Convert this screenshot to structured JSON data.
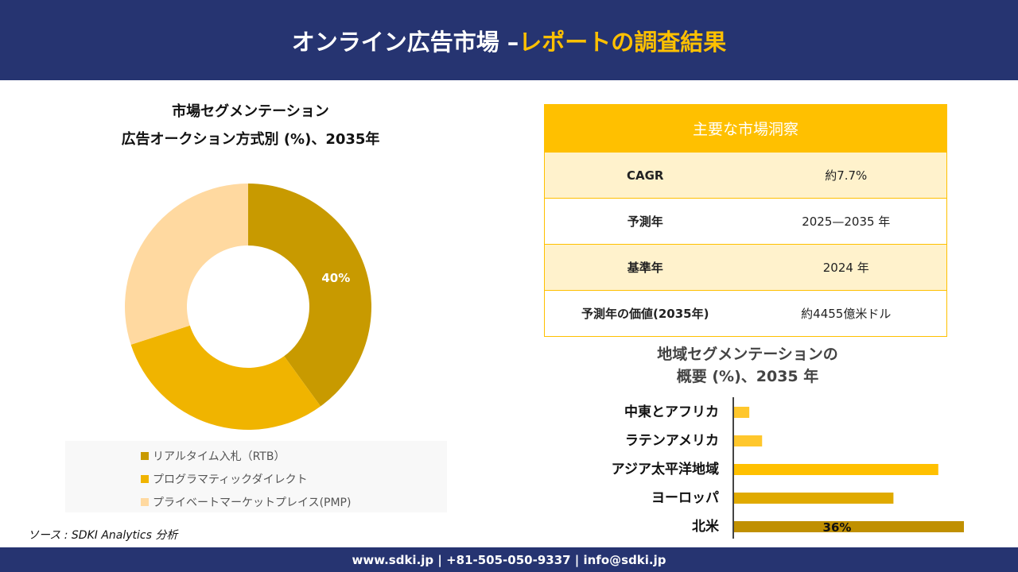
{
  "header": {
    "title_main": "オンライン広告市場 –",
    "title_highlight": "レポートの調査結果"
  },
  "colors": {
    "header_bg": "#263471",
    "accent": "#FFC000",
    "rtb": "#C89A00",
    "programmatic": "#F0B400",
    "pmp": "#FFD9A0"
  },
  "chart_data": [
    {
      "type": "pie",
      "donut": true,
      "title_line1": "市場セグメンテーション",
      "title_line2": "広告オークション方式別 (%)、2035年",
      "categories": [
        "リアルタイム入札（RTB）",
        "プログラマティックダイレクト",
        "プライベートマーケットプレイス(PMP)"
      ],
      "values": [
        40,
        30,
        30
      ],
      "data_labels": [
        "40%",
        "",
        ""
      ],
      "colors": [
        "#C89A00",
        "#F0B400",
        "#FFD9A0"
      ],
      "legend": "bottom"
    },
    {
      "type": "bar",
      "orientation": "horizontal",
      "title_line1": "地域セグメンテーションの",
      "title_line2": "概要 (%)、2035 年",
      "categories": [
        "中東とアフリカ",
        "ラテンアメリカ",
        "アジア太平洋地域",
        "ヨーロッパ",
        "北米"
      ],
      "values": [
        2.5,
        4.5,
        32,
        25,
        36
      ],
      "data_labels": [
        "",
        "",
        "",
        "",
        "36%"
      ],
      "colors": [
        "#FFC72C",
        "#FFC72C",
        "#FFC000",
        "#E0AA00",
        "#C09000"
      ],
      "xlim": [
        0,
        36
      ]
    }
  ],
  "insights": {
    "title": "主要な市場洞察",
    "rows": [
      {
        "key": "CAGR",
        "value": "約7.7%"
      },
      {
        "key": "予測年",
        "value": "2025—2035 年"
      },
      {
        "key": "基準年",
        "value": "2024 年"
      },
      {
        "key": "予測年の価値(2035年)",
        "value": "約4455億米ドル"
      }
    ]
  },
  "source": "ソース : SDKI Analytics 分析",
  "footer": "www.sdki.jp | +81-505-050-9337 | info@sdki.jp"
}
